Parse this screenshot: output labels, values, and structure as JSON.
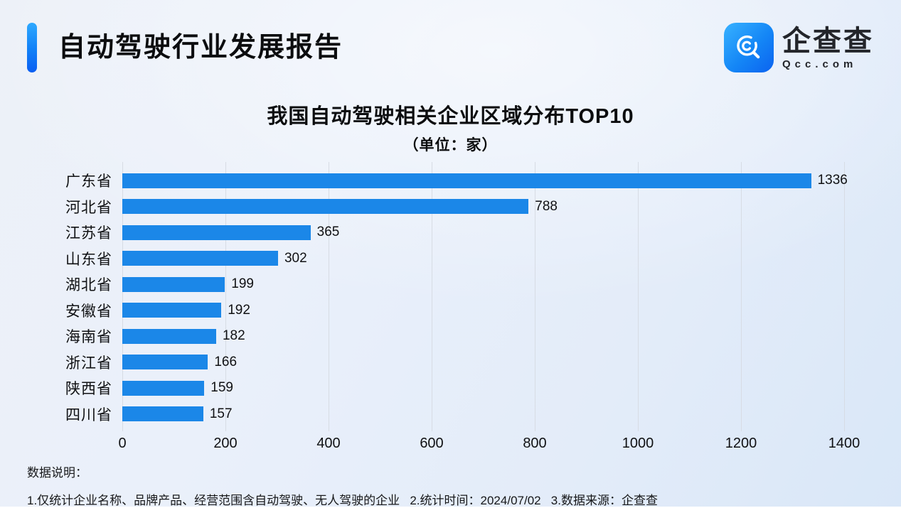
{
  "header": {
    "title": "自动驾驶行业发展报告",
    "logo": {
      "brand": "企查查",
      "domain": "Qcc.com",
      "icon": "qcc-magnifier-icon"
    }
  },
  "chart_data": {
    "type": "bar",
    "orientation": "horizontal",
    "title": "我国自动驾驶相关企业区域分布TOP10",
    "subtitle": "（单位：家）",
    "categories": [
      "广东省",
      "河北省",
      "江苏省",
      "山东省",
      "湖北省",
      "安徽省",
      "海南省",
      "浙江省",
      "陕西省",
      "四川省"
    ],
    "values": [
      1336,
      788,
      365,
      302,
      199,
      192,
      182,
      166,
      159,
      157
    ],
    "xlabel": "",
    "ylabel": "",
    "xlim": [
      0,
      1400
    ],
    "xticks": [
      0,
      200,
      400,
      600,
      800,
      1000,
      1200,
      1400
    ],
    "grid": true,
    "legend": false,
    "bar_color": "#1b87e8"
  },
  "footer": {
    "notes_label": "数据说明：",
    "notes": "1.仅统计企业名称、品牌产品、经营范围含自动驾驶、无人驾驶的企业   2.统计时间：2024/07/02   3.数据来源：企查查"
  },
  "colors": {
    "bar": "#1b87e8",
    "accent_top": "#2ea9ff",
    "accent_bottom": "#0a5ef2",
    "grid_line": "#d7dce4",
    "text": "#101113"
  }
}
